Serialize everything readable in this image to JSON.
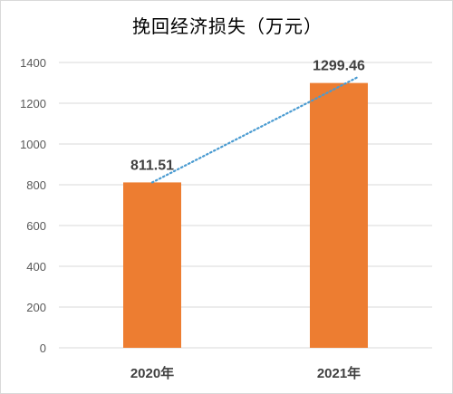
{
  "chart_data": {
    "type": "bar",
    "title": "挽回经济损失（万元）",
    "categories": [
      "2020年",
      "2021年"
    ],
    "values": [
      811.51,
      1299.46
    ],
    "data_labels": [
      "811.51",
      "1299.46"
    ],
    "ylim": [
      0,
      1400
    ],
    "yticks": [
      0,
      200,
      400,
      600,
      800,
      1000,
      1200,
      1400
    ],
    "grid": true,
    "trendline": true,
    "legend": "none",
    "colors": {
      "bar": "#ED7D31",
      "trendline": "#4A9BD1",
      "grid": "#d9d9d9"
    }
  }
}
